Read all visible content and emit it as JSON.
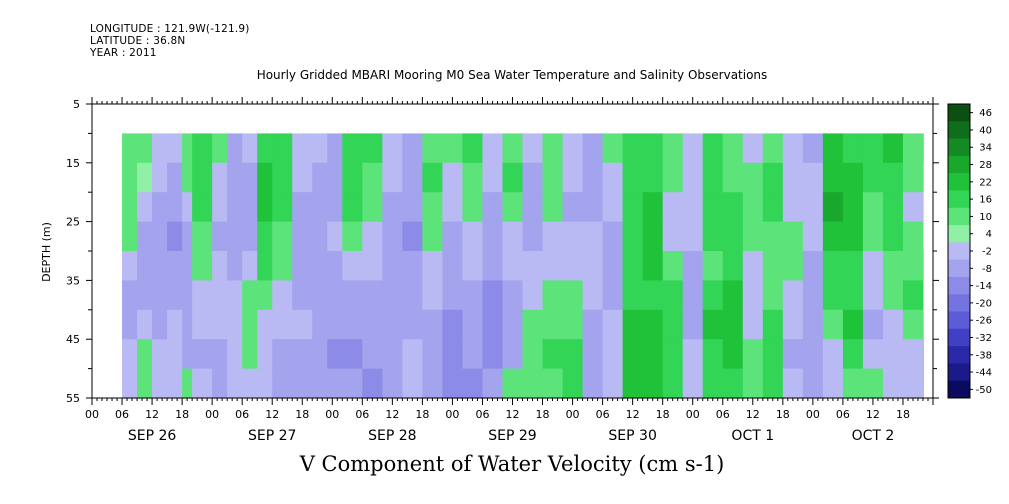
{
  "header": {
    "longitude": "LONGITUDE : 121.9W(-121.9)",
    "latitude": "LATITUDE : 36.8N",
    "year": "YEAR : 2011"
  },
  "chart_data": {
    "type": "heatmap",
    "title": "Hourly Gridded MBARI Mooring M0 Sea Water Temperature and Salinity Observations",
    "xlabel": "V Component of Water Velocity (cm s-1)",
    "ylabel": "DEPTH (m)",
    "ylim": [
      55,
      5
    ],
    "y_ticks": [
      "5",
      "15",
      "25",
      "35",
      "45",
      "55"
    ],
    "x_hour_ticks": [
      "00",
      "06",
      "12",
      "18",
      "00",
      "06",
      "12",
      "18",
      "00",
      "06",
      "12",
      "18",
      "00",
      "06",
      "12",
      "18",
      "00",
      "06",
      "12",
      "18",
      "00",
      "06",
      "12",
      "18",
      "00",
      "06",
      "12",
      "18"
    ],
    "x_date_labels": [
      "SEP 26",
      "SEP 27",
      "SEP 28",
      "SEP 29",
      "SEP 30",
      "OCT  1",
      "OCT  2"
    ],
    "data_depth_range_m": [
      10,
      55
    ],
    "data_time_range_h": [
      6,
      166
    ],
    "colorbar": {
      "levels": [
        "46",
        "40",
        "34",
        "28",
        "22",
        "16",
        "10",
        "4",
        "-2",
        "-8",
        "-14",
        "-20",
        "-26",
        "-32",
        "-38",
        "-44",
        "-50"
      ],
      "colors": [
        "#0b4f12",
        "#0f6e1c",
        "#148a25",
        "#1aa72e",
        "#20c23a",
        "#33d556",
        "#5ce47a",
        "#8ff0a6",
        "#b9b9f3",
        "#a3a3ee",
        "#8c8ce8",
        "#7474e0",
        "#5c5cd6",
        "#4040c4",
        "#2a2aa8",
        "#1a1a88",
        "#0a0a5e"
      ]
    },
    "columns": [
      {
        "t": 6,
        "v": [
          6,
          8,
          7,
          5,
          -6,
          -10,
          -9,
          -8,
          -7
        ]
      },
      {
        "t": 9,
        "v": [
          4,
          3,
          -6,
          -10,
          -12,
          -9,
          -7,
          6,
          9
        ]
      },
      {
        "t": 12,
        "v": [
          -6,
          -8,
          -10,
          -12,
          -14,
          -12,
          -10,
          -8,
          -6
        ]
      },
      {
        "t": 15,
        "v": [
          -8,
          -10,
          -14,
          -16,
          -12,
          -10,
          -8,
          -6,
          -4
        ]
      },
      {
        "t": 18,
        "v": [
          8,
          6,
          -4,
          -10,
          -12,
          -14,
          -12,
          -10,
          4
        ]
      },
      {
        "t": 20,
        "v": [
          14,
          12,
          10,
          8,
          6,
          -6,
          -8,
          -10,
          -8
        ]
      },
      {
        "t": 24,
        "v": [
          6,
          -6,
          -8,
          -10,
          -8,
          -6,
          -8,
          -10,
          -12
        ]
      },
      {
        "t": 27,
        "v": [
          -10,
          -12,
          -14,
          -12,
          -10,
          -8,
          -6,
          -6,
          -8
        ]
      },
      {
        "t": 30,
        "v": [
          -8,
          -10,
          -12,
          -10,
          -8,
          6,
          8,
          6,
          -6
        ]
      },
      {
        "t": 33,
        "v": [
          12,
          16,
          18,
          14,
          10,
          6,
          -6,
          -8,
          -8
        ]
      },
      {
        "t": 36,
        "v": [
          10,
          14,
          12,
          8,
          6,
          -6,
          -8,
          -10,
          -10
        ]
      },
      {
        "t": 40,
        "v": [
          -6,
          -8,
          -10,
          -12,
          -12,
          -10,
          -8,
          -10,
          -12
        ]
      },
      {
        "t": 44,
        "v": [
          -8,
          -10,
          -12,
          -14,
          -14,
          -12,
          -10,
          -12,
          -14
        ]
      },
      {
        "t": 47,
        "v": [
          -10,
          -12,
          -10,
          -8,
          -10,
          -12,
          -14,
          -16,
          -12
        ]
      },
      {
        "t": 50,
        "v": [
          12,
          14,
          10,
          6,
          -6,
          -10,
          -14,
          -16,
          -14
        ]
      },
      {
        "t": 54,
        "v": [
          10,
          8,
          6,
          -6,
          -8,
          -10,
          -12,
          -14,
          -16
        ]
      },
      {
        "t": 58,
        "v": [
          -6,
          -8,
          -10,
          -12,
          -12,
          -14,
          -14,
          -12,
          -10
        ]
      },
      {
        "t": 62,
        "v": [
          -10,
          -12,
          -14,
          -16,
          -14,
          -12,
          -10,
          -8,
          -8
        ]
      },
      {
        "t": 66,
        "v": [
          8,
          10,
          8,
          6,
          -6,
          -8,
          -10,
          -12,
          -14
        ]
      },
      {
        "t": 70,
        "v": [
          6,
          -6,
          -8,
          -10,
          -12,
          -14,
          -16,
          -18,
          -16
        ]
      },
      {
        "t": 74,
        "v": [
          12,
          8,
          6,
          -6,
          -8,
          -10,
          -12,
          -14,
          -16
        ]
      },
      {
        "t": 78,
        "v": [
          -6,
          -8,
          -10,
          -12,
          -14,
          -16,
          -18,
          -16,
          -14
        ]
      },
      {
        "t": 82,
        "v": [
          8,
          10,
          6,
          -6,
          -8,
          -10,
          -12,
          -10,
          6
        ]
      },
      {
        "t": 86,
        "v": [
          -8,
          -10,
          -12,
          -10,
          -8,
          -6,
          6,
          8,
          6
        ]
      },
      {
        "t": 90,
        "v": [
          6,
          8,
          6,
          -6,
          -8,
          6,
          8,
          10,
          8
        ]
      },
      {
        "t": 94,
        "v": [
          -6,
          -8,
          -10,
          -8,
          -6,
          6,
          8,
          12,
          14
        ]
      },
      {
        "t": 98,
        "v": [
          -10,
          -12,
          -10,
          -8,
          -6,
          -8,
          -10,
          -12,
          -10
        ]
      },
      {
        "t": 102,
        "v": [
          6,
          -6,
          -8,
          -10,
          -12,
          -10,
          -8,
          -6,
          -8
        ]
      },
      {
        "t": 106,
        "v": [
          10,
          12,
          14,
          12,
          10,
          14,
          16,
          18,
          16
        ]
      },
      {
        "t": 110,
        "v": [
          12,
          14,
          16,
          18,
          16,
          14,
          16,
          18,
          20
        ]
      },
      {
        "t": 114,
        "v": [
          8,
          6,
          -6,
          -8,
          6,
          10,
          14,
          12,
          10
        ]
      },
      {
        "t": 118,
        "v": [
          -6,
          -8,
          -6,
          -8,
          -10,
          -12,
          -10,
          -8,
          -6
        ]
      },
      {
        "t": 122,
        "v": [
          12,
          14,
          12,
          10,
          8,
          14,
          16,
          14,
          12
        ]
      },
      {
        "t": 126,
        "v": [
          6,
          8,
          10,
          12,
          14,
          16,
          18,
          16,
          14
        ]
      },
      {
        "t": 130,
        "v": [
          -6,
          6,
          8,
          6,
          -6,
          -8,
          -6,
          6,
          8
        ]
      },
      {
        "t": 134,
        "v": [
          8,
          10,
          12,
          8,
          6,
          8,
          10,
          12,
          10
        ]
      },
      {
        "t": 138,
        "v": [
          -6,
          -8,
          -6,
          6,
          8,
          -6,
          -8,
          -10,
          -8
        ]
      },
      {
        "t": 142,
        "v": [
          -10,
          -8,
          -6,
          -8,
          -10,
          -12,
          -14,
          -12,
          -10
        ]
      },
      {
        "t": 146,
        "v": [
          16,
          20,
          22,
          18,
          14,
          10,
          6,
          -6,
          -8
        ]
      },
      {
        "t": 150,
        "v": [
          14,
          18,
          20,
          16,
          12,
          14,
          16,
          12,
          8
        ]
      },
      {
        "t": 154,
        "v": [
          10,
          12,
          8,
          6,
          -6,
          -8,
          -10,
          -8,
          6
        ]
      },
      {
        "t": 158,
        "v": [
          16,
          14,
          12,
          10,
          8,
          6,
          -6,
          -8,
          -6
        ]
      },
      {
        "t": 162,
        "v": [
          8,
          6,
          -6,
          6,
          8,
          10,
          8,
          -6,
          -8
        ]
      },
      {
        "t": 166,
        "v": [
          10,
          8,
          -6,
          -8,
          -10,
          6,
          8,
          10,
          12
        ]
      }
    ]
  }
}
